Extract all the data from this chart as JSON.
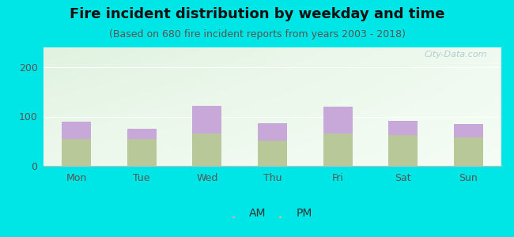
{
  "title": "Fire incident distribution by weekday and time",
  "subtitle": "(Based on 680 fire incident reports from years 2003 - 2018)",
  "categories": [
    "Mon",
    "Tue",
    "Wed",
    "Thu",
    "Fri",
    "Sat",
    "Sun"
  ],
  "pm_values": [
    55,
    55,
    65,
    52,
    65,
    62,
    58
  ],
  "am_values": [
    35,
    20,
    57,
    35,
    55,
    30,
    27
  ],
  "am_color": "#c8a8d8",
  "pm_color": "#b8c898",
  "background_color": "#00e5e5",
  "ylim": [
    0,
    240
  ],
  "yticks": [
    0,
    100,
    200
  ],
  "bar_width": 0.45,
  "title_fontsize": 13,
  "subtitle_fontsize": 9,
  "tick_fontsize": 9,
  "legend_fontsize": 10,
  "watermark": "City-Data.com"
}
